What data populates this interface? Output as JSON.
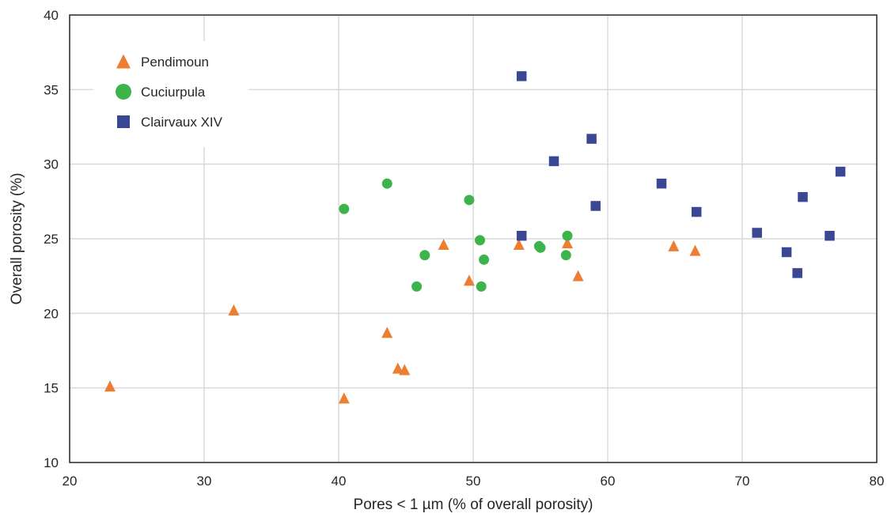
{
  "chart_data": {
    "type": "scatter",
    "title": "",
    "xlabel": "Pores < 1 µm (% of overall porosity)",
    "ylabel": "Overall porosity (%)",
    "xlim": [
      20,
      80
    ],
    "ylim": [
      10,
      40
    ],
    "x_ticks": [
      20,
      30,
      40,
      50,
      60,
      70,
      80
    ],
    "y_ticks": [
      10,
      15,
      20,
      25,
      30,
      35,
      40
    ],
    "grid": true,
    "legend_position": "top-left",
    "series": [
      {
        "name": "Pendimoun",
        "marker": "triangle",
        "color": "#ED7D31",
        "points": [
          [
            23.0,
            15.1
          ],
          [
            32.2,
            20.2
          ],
          [
            40.4,
            14.3
          ],
          [
            43.6,
            18.7
          ],
          [
            44.4,
            16.3
          ],
          [
            44.9,
            16.2
          ],
          [
            47.8,
            24.6
          ],
          [
            49.7,
            22.2
          ],
          [
            53.4,
            24.6
          ],
          [
            57.0,
            24.7
          ],
          [
            57.8,
            22.5
          ],
          [
            64.9,
            24.5
          ],
          [
            66.5,
            24.2
          ]
        ]
      },
      {
        "name": "Cuciurpula",
        "marker": "circle",
        "color": "#3CB44B",
        "points": [
          [
            40.4,
            27.0
          ],
          [
            43.6,
            28.7
          ],
          [
            45.8,
            21.8
          ],
          [
            46.4,
            23.9
          ],
          [
            49.7,
            27.6
          ],
          [
            50.5,
            24.9
          ],
          [
            50.6,
            21.8
          ],
          [
            50.8,
            23.6
          ],
          [
            54.9,
            24.5
          ],
          [
            55.0,
            24.4
          ],
          [
            56.9,
            23.9
          ],
          [
            57.0,
            25.2
          ]
        ]
      },
      {
        "name": "Clairvaux XIV",
        "marker": "square",
        "color": "#3A4795",
        "points": [
          [
            53.6,
            35.9
          ],
          [
            53.6,
            25.2
          ],
          [
            56.0,
            30.2
          ],
          [
            58.8,
            31.7
          ],
          [
            59.1,
            27.2
          ],
          [
            64.0,
            28.7
          ],
          [
            66.6,
            26.8
          ],
          [
            71.1,
            25.4
          ],
          [
            73.3,
            24.1
          ],
          [
            74.1,
            22.7
          ],
          [
            74.5,
            27.8
          ],
          [
            76.5,
            25.2
          ],
          [
            77.3,
            29.5
          ]
        ]
      }
    ]
  }
}
